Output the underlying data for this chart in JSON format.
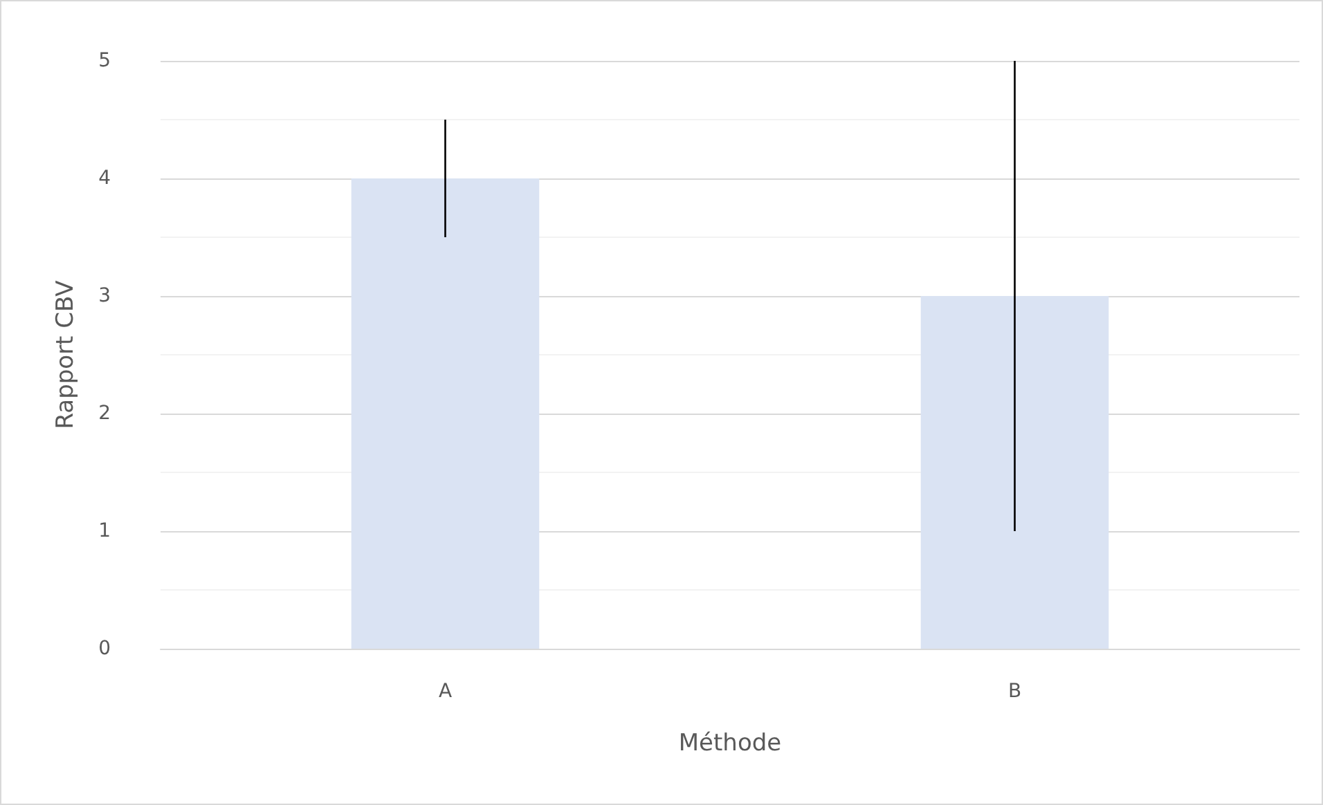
{
  "chart_data": {
    "type": "bar",
    "xlabel": "Méthode",
    "ylabel": "Rapport CBV",
    "categories": [
      "A",
      "B"
    ],
    "values": [
      4,
      3
    ],
    "color": "#dae3f3",
    "errors": [
      [
        3.5,
        4.5
      ],
      [
        1,
        5
      ]
    ],
    "ylim": [
      0,
      5
    ],
    "yticks": [
      0,
      {
        "value": 0.5,
        "label": null
      },
      1,
      {
        "value": 1.5,
        "label": null
      },
      2,
      {
        "value": 2.5,
        "label": null
      },
      3,
      {
        "value": 3.5,
        "label": null
      },
      4,
      {
        "value": 4.5,
        "label": null
      },
      5
    ],
    "grid": "y"
  }
}
